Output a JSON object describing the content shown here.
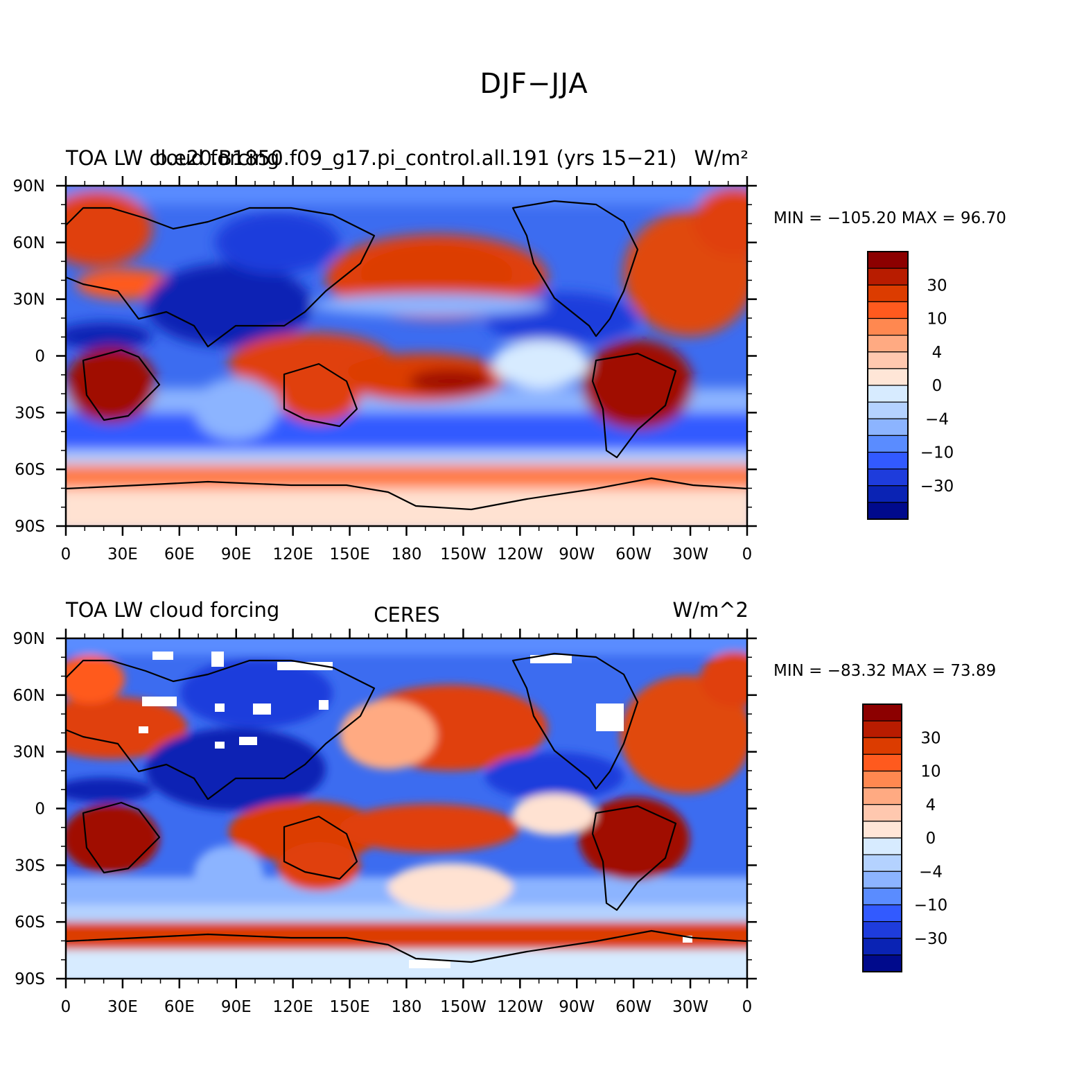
{
  "title": "DJF−JJA",
  "chart_data": [
    {
      "type": "heatmap",
      "name": "model",
      "title_left": "TOA LW cloud forcing",
      "title_center": "b.e20.B1850.f09_g17.pi_control.all.191 (yrs 15−21)",
      "title_right": "W/m²",
      "stats": "MIN = −105.20  MAX =   96.70",
      "min": -105.2,
      "max": 96.7,
      "xticks": [
        "0",
        "30E",
        "60E",
        "90E",
        "120E",
        "150E",
        "180",
        "150W",
        "120W",
        "90W",
        "60W",
        "30W",
        "0"
      ],
      "yticks": [
        "90N",
        "60N",
        "30N",
        "0",
        "30S",
        "60S",
        "90S"
      ],
      "colorbar_labels": [
        "30",
        "10",
        "4",
        "0",
        "−4",
        "−10",
        "−30"
      ],
      "colors": [
        "#8c0000",
        "#b81c00",
        "#dc3c00",
        "#ff5a1e",
        "#ff8850",
        "#ffaa82",
        "#ffc8af",
        "#ffe6d7",
        "#d7ebff",
        "#b4d2ff",
        "#8cb4ff",
        "#5a8cff",
        "#325aff",
        "#1e3cdc",
        "#0a23b4",
        "#000a8c"
      ]
    },
    {
      "type": "heatmap",
      "name": "obs",
      "title_left": "TOA LW cloud forcing",
      "title_center": "CERES",
      "title_right": "W/m^2",
      "stats": "MIN = −83.32  MAX =   73.89",
      "min": -83.32,
      "max": 73.89,
      "xticks": [
        "0",
        "30E",
        "60E",
        "90E",
        "120E",
        "150E",
        "180",
        "150W",
        "120W",
        "90W",
        "60W",
        "30W",
        "0"
      ],
      "yticks": [
        "90N",
        "60N",
        "30N",
        "0",
        "30S",
        "60S",
        "90S"
      ],
      "colorbar_labels": [
        "30",
        "10",
        "4",
        "0",
        "−4",
        "−10",
        "−30"
      ],
      "colors": [
        "#8c0000",
        "#b81c00",
        "#dc3c00",
        "#ff5a1e",
        "#ff8850",
        "#ffaa82",
        "#ffc8af",
        "#ffe6d7",
        "#d7ebff",
        "#b4d2ff",
        "#8cb4ff",
        "#5a8cff",
        "#325aff",
        "#1e3cdc",
        "#0a23b4",
        "#000a8c"
      ]
    }
  ]
}
